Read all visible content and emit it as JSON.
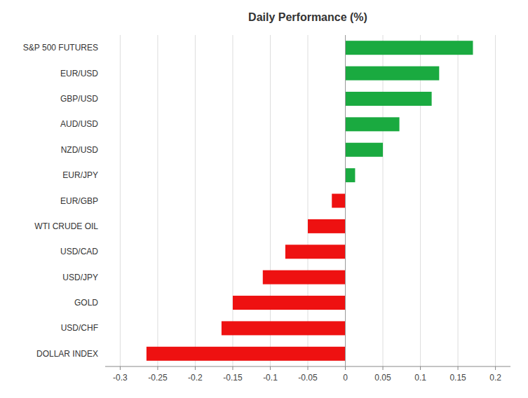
{
  "chart_data": {
    "type": "bar",
    "orientation": "horizontal",
    "title": "Daily Performance (%)",
    "categories": [
      "S&P 500 FUTURES",
      "EUR/USD",
      "GBP/USD",
      "AUD/USD",
      "NZD/USD",
      "EUR/JPY",
      "EUR/GBP",
      "WTI CRUDE OIL",
      "USD/CAD",
      "USD/JPY",
      "GOLD",
      "USD/CHF",
      "DOLLAR INDEX"
    ],
    "values": [
      0.17,
      0.125,
      0.115,
      0.072,
      0.05,
      0.013,
      -0.018,
      -0.05,
      -0.08,
      -0.11,
      -0.15,
      -0.165,
      -0.265
    ],
    "colors": [
      "#1aaa40",
      "#1aaa40",
      "#1aaa40",
      "#1aaa40",
      "#1aaa40",
      "#1aaa40",
      "#ee1111",
      "#ee1111",
      "#ee1111",
      "#ee1111",
      "#ee1111",
      "#ee1111",
      "#ee1111"
    ],
    "xlim": [
      -0.32,
      0.22
    ],
    "xticks": [
      -0.3,
      -0.25,
      -0.2,
      -0.15,
      -0.1,
      -0.05,
      0,
      0.05,
      0.1,
      0.15,
      0.2
    ],
    "grid": true
  }
}
